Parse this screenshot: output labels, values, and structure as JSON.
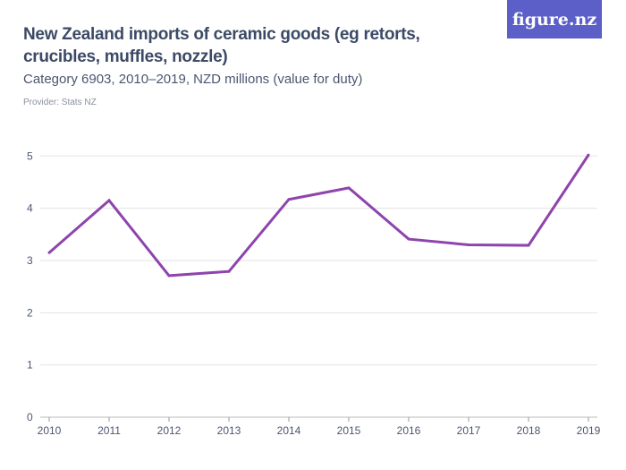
{
  "header": {
    "title": "New Zealand imports of ceramic goods (eg retorts, crucibles, muffles, nozzle)",
    "subtitle": "Category 6903, 2010–2019, NZD millions (value for duty)",
    "provider": "Provider: Stats NZ",
    "logo": "figure.nz"
  },
  "colors": {
    "line": "#8e44ad",
    "grid": "#e3e3e3",
    "logo_bg": "#5b5fc7"
  },
  "chart_data": {
    "type": "line",
    "title": "New Zealand imports of ceramic goods (eg retorts, crucibles, muffles, nozzle)",
    "x": [
      "2010",
      "2011",
      "2012",
      "2013",
      "2014",
      "2015",
      "2016",
      "2017",
      "2018",
      "2019"
    ],
    "series": [
      {
        "values": [
          3.15,
          4.15,
          2.71,
          2.79,
          4.17,
          4.39,
          3.41,
          3.3,
          3.29,
          5.02
        ]
      }
    ],
    "yticks": [
      "0",
      "1",
      "2",
      "3",
      "4",
      "5"
    ],
    "ylim": [
      0,
      5
    ],
    "grid": true,
    "legend": "none"
  }
}
